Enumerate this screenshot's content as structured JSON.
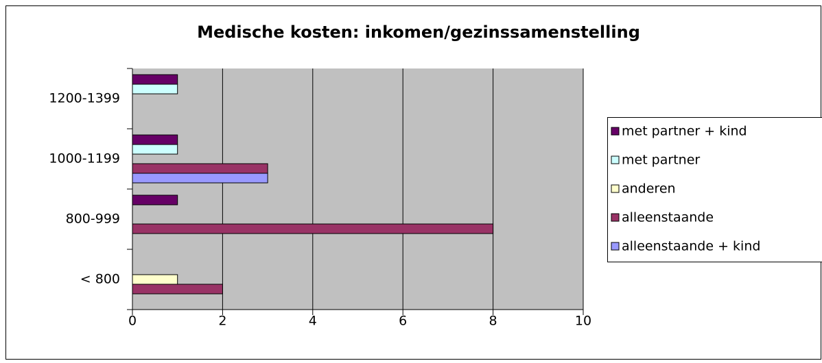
{
  "chart_data": {
    "type": "bar",
    "orientation": "horizontal",
    "title": "Medische kosten: inkomen/gezinssamenstelling",
    "categories": [
      "< 800",
      "800-999",
      "1000-1199",
      "1200-1399"
    ],
    "series": [
      {
        "name": "met partner + kind",
        "color": "#660066",
        "values": [
          0,
          1,
          1,
          1
        ]
      },
      {
        "name": "met partner",
        "color": "#ccffff",
        "values": [
          0,
          0,
          1,
          1
        ]
      },
      {
        "name": "anderen",
        "color": "#ffffcc",
        "values": [
          1,
          0,
          0,
          0
        ]
      },
      {
        "name": "alleenstaande",
        "color": "#993366",
        "values": [
          2,
          8,
          3,
          0
        ]
      },
      {
        "name": "alleenstaande + kind",
        "color": "#9999ff",
        "values": [
          0,
          0,
          3,
          0
        ]
      }
    ],
    "xlim": [
      0,
      10
    ],
    "xticks": [
      0,
      2,
      4,
      6,
      8,
      10
    ],
    "grid": true,
    "plot_background": "#c0c0c0",
    "legend": "right"
  }
}
